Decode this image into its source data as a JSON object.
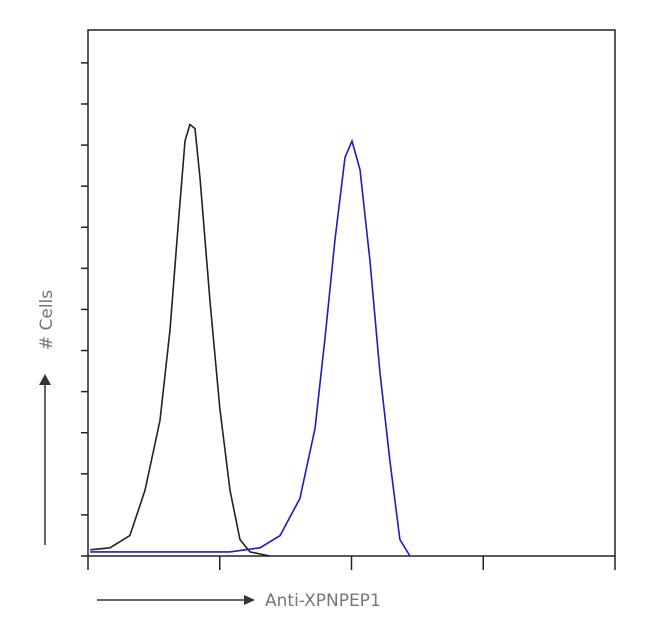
{
  "chart_data": {
    "type": "line",
    "xlabel": "Anti-XPNPEP1",
    "ylabel": "# Cells",
    "xscale": "log",
    "xlim": [
      1,
      10000
    ],
    "xticks": [
      1,
      10,
      100,
      1000,
      10000
    ],
    "ylim": [
      0,
      12.8
    ],
    "yticks": [
      0,
      1,
      2,
      3,
      4,
      5,
      6,
      7,
      8,
      9,
      10,
      11,
      12
    ],
    "series": [
      {
        "color": "#222222",
        "x": [
          1.04,
          1.47,
          2.08,
          2.71,
          3.52,
          4.19,
          4.82,
          5.45,
          5.94,
          6.49,
          7.08,
          8.43,
          10.0,
          11.96,
          14.25,
          16.98,
          24.0
        ],
        "values": [
          0.15,
          0.2,
          0.5,
          1.6,
          3.3,
          5.5,
          8.0,
          10.1,
          10.5,
          10.4,
          9.2,
          6.2,
          3.6,
          1.6,
          0.4,
          0.1,
          0
        ]
      },
      {
        "color": "#1a1acc",
        "x": [
          1.04,
          2.96,
          11.96,
          20.2,
          28.7,
          40.6,
          52.8,
          62.9,
          74.9,
          89.3,
          100.9,
          116,
          138,
          164,
          196,
          233,
          278
        ],
        "values": [
          0.1,
          0.1,
          0.1,
          0.2,
          0.5,
          1.4,
          3.1,
          5.3,
          7.7,
          9.7,
          10.1,
          9.4,
          7.2,
          4.5,
          2.3,
          0.4,
          0
        ]
      }
    ]
  }
}
